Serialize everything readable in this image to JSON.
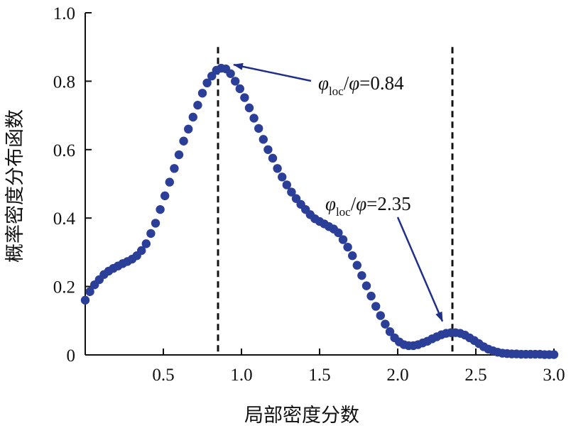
{
  "chart_data": {
    "type": "scatter",
    "title": "",
    "xlabel": "局部密度分数",
    "ylabel": "概率密度分布函数",
    "xlim": [
      0.0,
      3.0
    ],
    "ylim": [
      0.0,
      1.0
    ],
    "x_ticks": [
      "0.5",
      "1.0",
      "1.5",
      "2.0",
      "2.5",
      "3.0"
    ],
    "y_ticks": [
      "0",
      "0.2",
      "0.4",
      "0.6",
      "0.8",
      "1.0"
    ],
    "grid": false,
    "legend": "none",
    "marker_color": "#2b3f98",
    "annotation_color": "#1f2f8a",
    "series": [
      {
        "x": [
          0.0,
          0.03,
          0.06,
          0.09,
          0.12,
          0.15,
          0.18,
          0.21,
          0.24,
          0.27,
          0.3,
          0.33,
          0.36,
          0.39,
          0.42,
          0.45,
          0.48,
          0.51,
          0.54,
          0.57,
          0.6,
          0.63,
          0.66,
          0.69,
          0.72,
          0.75,
          0.78,
          0.81,
          0.84,
          0.87,
          0.9,
          0.93,
          0.96,
          0.99,
          1.02,
          1.05,
          1.08,
          1.11,
          1.14,
          1.17,
          1.2,
          1.23,
          1.26,
          1.29,
          1.32,
          1.35,
          1.38,
          1.41,
          1.44,
          1.47,
          1.5,
          1.53,
          1.56,
          1.59,
          1.62,
          1.65,
          1.68,
          1.71,
          1.74,
          1.77,
          1.8,
          1.83,
          1.86,
          1.89,
          1.92,
          1.95,
          1.98,
          2.01,
          2.04,
          2.07,
          2.1,
          2.13,
          2.16,
          2.19,
          2.22,
          2.25,
          2.28,
          2.31,
          2.34,
          2.37,
          2.4,
          2.43,
          2.46,
          2.49,
          2.52,
          2.55,
          2.58,
          2.61,
          2.64,
          2.67,
          2.7,
          2.73,
          2.76,
          2.79,
          2.82,
          2.85,
          2.88,
          2.91,
          2.94,
          2.97,
          3.0
        ],
        "y": [
          0.16,
          0.185,
          0.205,
          0.22,
          0.235,
          0.245,
          0.253,
          0.26,
          0.267,
          0.273,
          0.28,
          0.29,
          0.305,
          0.325,
          0.355,
          0.385,
          0.425,
          0.465,
          0.505,
          0.545,
          0.585,
          0.625,
          0.66,
          0.695,
          0.73,
          0.765,
          0.795,
          0.815,
          0.832,
          0.838,
          0.836,
          0.822,
          0.8,
          0.778,
          0.752,
          0.722,
          0.692,
          0.662,
          0.63,
          0.6,
          0.575,
          0.545,
          0.52,
          0.497,
          0.476,
          0.457,
          0.44,
          0.425,
          0.41,
          0.398,
          0.39,
          0.383,
          0.375,
          0.368,
          0.357,
          0.337,
          0.315,
          0.29,
          0.262,
          0.232,
          0.202,
          0.172,
          0.142,
          0.115,
          0.09,
          0.068,
          0.05,
          0.038,
          0.03,
          0.027,
          0.027,
          0.03,
          0.035,
          0.04,
          0.047,
          0.053,
          0.059,
          0.063,
          0.065,
          0.065,
          0.063,
          0.058,
          0.05,
          0.042,
          0.033,
          0.024,
          0.017,
          0.012,
          0.008,
          0.005,
          0.004,
          0.003,
          0.003,
          0.002,
          0.002,
          0.002,
          0.002,
          0.002,
          0.001,
          0.001,
          0.001
        ]
      }
    ],
    "vlines": [
      0.85,
      2.35
    ],
    "annotations": [
      {
        "sym": "φ",
        "sub": "loc",
        "rest": "/φ=0.84",
        "x": 0.85,
        "y": 0.84
      },
      {
        "sym": "φ",
        "sub": "loc",
        "rest": "/φ=2.35",
        "x": 2.35,
        "y": 0.065
      }
    ]
  }
}
